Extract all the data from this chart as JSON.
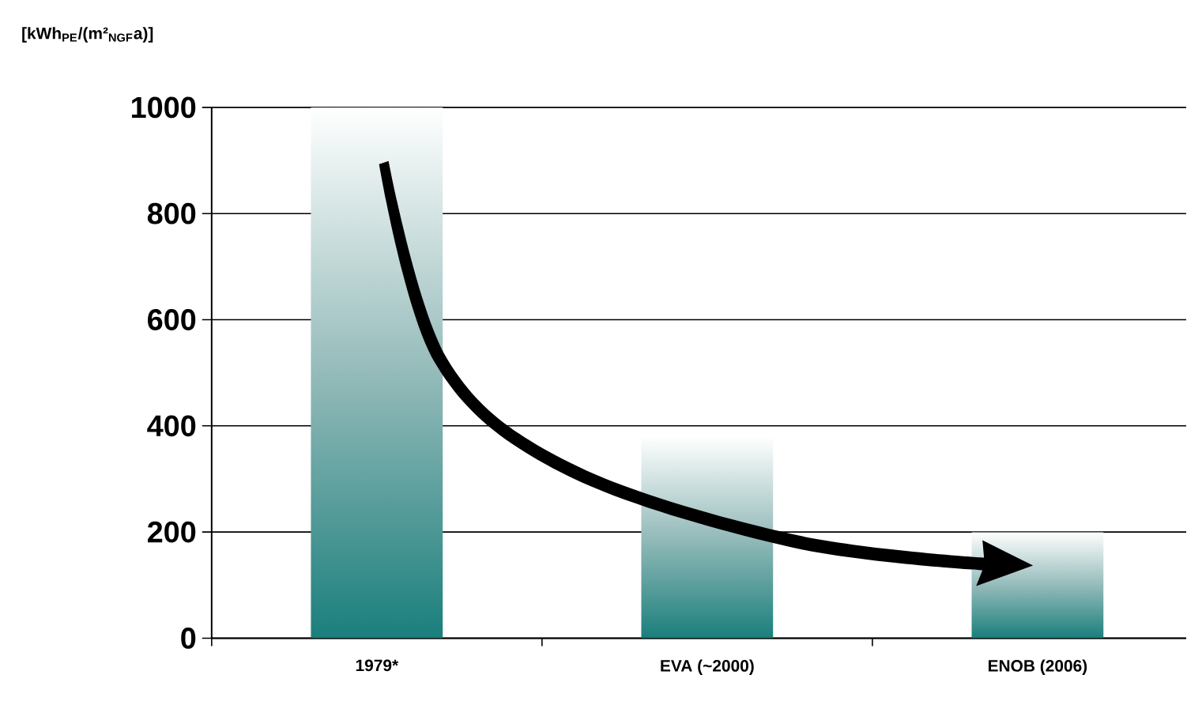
{
  "chart_data": {
    "type": "bar",
    "ylabel": "[kWh$_{PE}$/(m²$_{NGF}$a)]",
    "categories": [
      "1979*",
      "EVA  (~2000)",
      "ENOB (2006)"
    ],
    "values": [
      1000,
      380,
      200
    ],
    "color": "#1a7f7c",
    "ylim": [
      0,
      1000
    ],
    "yticks": [
      0,
      200,
      400,
      600,
      800,
      1000
    ],
    "grid": "y"
  }
}
